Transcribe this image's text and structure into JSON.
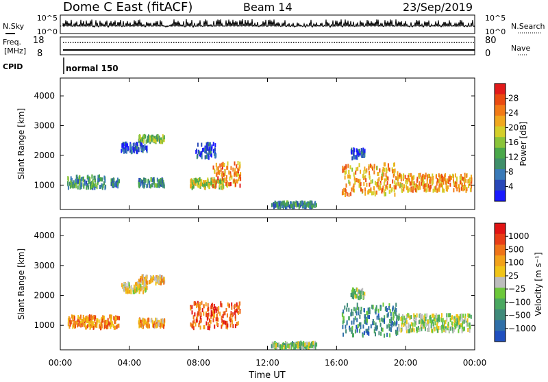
{
  "header": {
    "title": "Dome C East (fitACF)",
    "beam": "Beam 14",
    "date": "23/Sep/2019"
  },
  "status_panels": {
    "nsky_label": "N.Sky",
    "nsky_ticks": [
      "10^5",
      "10^0"
    ],
    "nsearch_label": "N.Search",
    "nsearch_ticks": [
      "10^5",
      "10^0"
    ],
    "freq_label_1": "Freq.",
    "freq_label_2": "[MHz]",
    "freq_ticks": [
      "18",
      "8"
    ],
    "nave_label": "Nave",
    "nave_ticks": [
      "80",
      "0"
    ],
    "cpid_label": "CPID",
    "cpid_value": "normal 150"
  },
  "chart_data": [
    {
      "type": "heatmap",
      "name": "power",
      "ylabel": "Slant Range [km]",
      "yticks": [
        "4000",
        "3000",
        "2000",
        "1000"
      ],
      "ylim": [
        180,
        4600
      ],
      "xlim": [
        0,
        24
      ],
      "colorbar": {
        "label": "Power [dB]",
        "ticks": [
          "28",
          "24",
          "20",
          "16",
          "12",
          "8",
          "4"
        ],
        "colors": [
          "#1a1aff",
          "#2848b8",
          "#3a7ab8",
          "#3f8f6a",
          "#4aa84a",
          "#8ac43a",
          "#d4cf2a",
          "#f0a81e",
          "#f27a16",
          "#ea4a10",
          "#e21a1a"
        ]
      },
      "regions": [
        {
          "t0": 0.4,
          "t1": 2.6,
          "r0": 900,
          "r1": 1300,
          "level": 0.35
        },
        {
          "t0": 2.9,
          "t1": 3.4,
          "r0": 950,
          "r1": 1200,
          "level": 0.25
        },
        {
          "t0": 4.5,
          "t1": 6.0,
          "r0": 950,
          "r1": 1200,
          "level": 0.3
        },
        {
          "t0": 4.5,
          "t1": 6.0,
          "r0": 2450,
          "r1": 2650,
          "level": 0.45
        },
        {
          "t0": 3.5,
          "t1": 5.0,
          "r0": 2100,
          "r1": 2400,
          "level": 0.15
        },
        {
          "t0": 7.5,
          "t1": 9.5,
          "r0": 900,
          "r1": 1200,
          "level": 0.55
        },
        {
          "t0": 8.8,
          "t1": 10.4,
          "r0": 950,
          "r1": 1750,
          "level": 0.75
        },
        {
          "t0": 7.8,
          "t1": 9.0,
          "r0": 1900,
          "r1": 2400,
          "level": 0.15
        },
        {
          "t0": 12.2,
          "t1": 14.8,
          "r0": 250,
          "r1": 420,
          "level": 0.3
        },
        {
          "t0": 16.3,
          "t1": 19.5,
          "r0": 650,
          "r1": 1700,
          "level": 0.7
        },
        {
          "t0": 19.5,
          "t1": 23.8,
          "r0": 800,
          "r1": 1350,
          "level": 0.72
        },
        {
          "t0": 16.8,
          "t1": 17.6,
          "r0": 1900,
          "r1": 2200,
          "level": 0.15
        }
      ]
    },
    {
      "type": "heatmap",
      "name": "velocity",
      "ylabel": "Slant Range [km]",
      "yticks": [
        "4000",
        "3000",
        "2000",
        "1000"
      ],
      "ylim": [
        180,
        4600
      ],
      "xlim": [
        0,
        24
      ],
      "colorbar": {
        "label": "Velocity [m s⁻¹]",
        "ticks": [
          "1000",
          "500",
          "100",
          "25",
          "−25",
          "−100",
          "−500",
          "−1000"
        ],
        "colors": [
          "#1f4fbf",
          "#2f6fa8",
          "#3f8a7a",
          "#4aa860",
          "#6cc83a",
          "#bdbdbd",
          "#f0c418",
          "#f2a21a",
          "#ef7418",
          "#e83d16",
          "#e11414"
        ]
      },
      "regions": [
        {
          "t0": 0.4,
          "t1": 3.4,
          "r0": 900,
          "r1": 1300,
          "level": 0.72
        },
        {
          "t0": 4.5,
          "t1": 6.0,
          "r0": 950,
          "r1": 1200,
          "level": 0.68
        },
        {
          "t0": 4.5,
          "t1": 6.0,
          "r0": 2400,
          "r1": 2650,
          "level": 0.62
        },
        {
          "t0": 3.5,
          "t1": 5.0,
          "r0": 2100,
          "r1": 2400,
          "level": 0.55
        },
        {
          "t0": 7.5,
          "t1": 10.4,
          "r0": 900,
          "r1": 1750,
          "level": 0.82
        },
        {
          "t0": 12.2,
          "t1": 14.8,
          "r0": 250,
          "r1": 420,
          "level": 0.4
        },
        {
          "t0": 16.3,
          "t1": 19.5,
          "r0": 650,
          "r1": 1700,
          "level": 0.22
        },
        {
          "t0": 19.5,
          "t1": 23.8,
          "r0": 800,
          "r1": 1350,
          "level": 0.45
        },
        {
          "t0": 16.8,
          "t1": 17.6,
          "r0": 1900,
          "r1": 2200,
          "level": 0.4
        }
      ]
    }
  ],
  "x_axis": {
    "ticks": [
      "00:00",
      "04:00",
      "08:00",
      "12:00",
      "16:00",
      "20:00",
      "00:00"
    ],
    "xlabel": "Time UT"
  }
}
